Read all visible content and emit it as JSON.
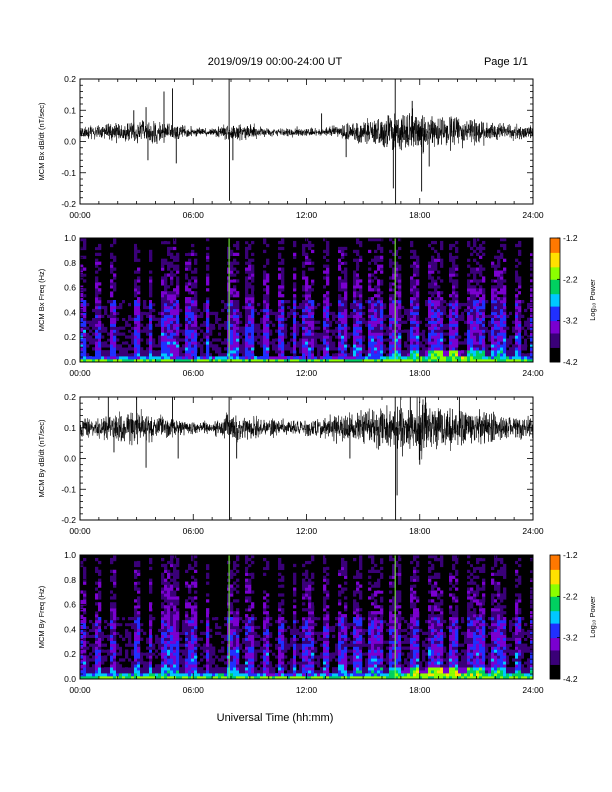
{
  "header": {
    "title": "2019/09/19  00:00-24:00 UT",
    "page": "Page 1/1"
  },
  "footer": {
    "xlabel": "Universal Time (hh:mm)"
  },
  "colors": {
    "trace": "#000000",
    "spectrogram_background": "#000000",
    "colormap": [
      "#000000",
      "#3a0078",
      "#7a00d0",
      "#2030ff",
      "#00c8ff",
      "#00d060",
      "#8cff00",
      "#ffe000",
      "#ff7800",
      "#ff0000"
    ]
  },
  "chart_data": [
    {
      "type": "line",
      "ylabel": "MCM Bx dB/dt (nT/sec)",
      "xlim": [
        0,
        24
      ],
      "ylim": [
        -0.2,
        0.2
      ],
      "xtick_labels": [
        "00:00",
        "06:00",
        "12:00",
        "18:00",
        "24:00"
      ],
      "ytick_labels": [
        "-0.2",
        "-0.1",
        "0.0",
        "0.1",
        "0.2"
      ],
      "grid": false,
      "series": [
        {
          "baseline": 0.03,
          "noise_envelope": {
            "x": [
              0,
              1,
              2,
              3,
              4,
              5,
              6,
              7,
              8,
              9,
              10,
              11,
              12,
              13,
              14,
              15,
              16,
              17,
              18,
              19,
              20,
              21,
              22,
              23,
              24
            ],
            "y": [
              0.015,
              0.02,
              0.025,
              0.03,
              0.035,
              0.02,
              0.012,
              0.012,
              0.025,
              0.02,
              0.012,
              0.012,
              0.012,
              0.012,
              0.022,
              0.03,
              0.045,
              0.055,
              0.05,
              0.045,
              0.04,
              0.035,
              0.025,
              0.022,
              0.02
            ]
          },
          "spikes": [
            {
              "x": 2.85,
              "y": 0.1
            },
            {
              "x": 3.5,
              "y": 0.11
            },
            {
              "x": 3.6,
              "y": -0.06
            },
            {
              "x": 4.45,
              "y": 0.16
            },
            {
              "x": 4.9,
              "y": 0.17
            },
            {
              "x": 5.1,
              "y": -0.07
            },
            {
              "x": 7.9,
              "y": 0.21
            },
            {
              "x": 7.92,
              "y": -0.19
            },
            {
              "x": 8.1,
              "y": -0.06
            },
            {
              "x": 16.7,
              "y": 0.21
            },
            {
              "x": 16.72,
              "y": -0.2
            },
            {
              "x": 16.6,
              "y": -0.15
            },
            {
              "x": 18.1,
              "y": -0.16
            },
            {
              "x": 17.6,
              "y": 0.13
            },
            {
              "x": 18.5,
              "y": -0.08
            },
            {
              "x": 14.1,
              "y": -0.05
            },
            {
              "x": 12.8,
              "y": 0.09
            }
          ]
        }
      ]
    },
    {
      "type": "heatmap",
      "ylabel": "MCM Bx Freq (Hz)",
      "xlim": [
        0,
        24
      ],
      "ylim": [
        0,
        1.0
      ],
      "xtick_labels": [
        "00:00",
        "06:00",
        "12:00",
        "18:00",
        "24:00"
      ],
      "ytick_labels": [
        "0.0",
        "0.2",
        "0.4",
        "0.6",
        "0.8",
        "1.0"
      ],
      "colorbar": {
        "label": "Log₁₀ Power",
        "range": [
          -4.2,
          -1.2
        ],
        "tick_labels": [
          "-1.2",
          "-2.2",
          "-3.2",
          "-4.2"
        ]
      },
      "dark_bands": [
        0.5,
        1.4,
        2.1,
        2.6,
        3.4,
        4.1,
        5.4,
        6.4,
        7.1,
        7.6,
        8.6,
        9.4,
        10.2,
        11.1,
        11.6,
        12.6,
        13.4,
        14.3,
        15.1,
        16.2,
        17.3,
        18.2,
        19.4,
        20.3,
        21.6,
        22.8,
        23.6
      ],
      "bright_lines": [
        7.9,
        16.7
      ],
      "low_freq_enhancement": {
        "x": [
          0,
          2,
          4,
          6,
          8,
          10,
          12,
          14,
          16,
          18,
          20,
          22,
          24
        ],
        "level": [
          0.35,
          0.4,
          0.5,
          0.3,
          0.45,
          0.3,
          0.3,
          0.35,
          0.45,
          0.7,
          0.8,
          0.55,
          0.4
        ]
      }
    },
    {
      "type": "line",
      "ylabel": "MCM By dB/dt (nT/sec)",
      "xlim": [
        0,
        24
      ],
      "ylim": [
        -0.2,
        0.2
      ],
      "xtick_labels": [
        "00:00",
        "06:00",
        "12:00",
        "18:00",
        "24:00"
      ],
      "ytick_labels": [
        "-0.2",
        "-0.1",
        "0.0",
        "0.1",
        "0.2"
      ],
      "grid": false,
      "series": [
        {
          "baseline": 0.1,
          "noise_envelope": {
            "x": [
              0,
              1,
              2,
              3,
              4,
              5,
              6,
              7,
              8,
              9,
              10,
              11,
              12,
              13,
              14,
              15,
              16,
              17,
              18,
              19,
              20,
              21,
              22,
              23,
              24
            ],
            "y": [
              0.025,
              0.03,
              0.04,
              0.045,
              0.035,
              0.025,
              0.015,
              0.015,
              0.04,
              0.035,
              0.025,
              0.02,
              0.025,
              0.03,
              0.04,
              0.05,
              0.06,
              0.07,
              0.07,
              0.065,
              0.055,
              0.05,
              0.04,
              0.035,
              0.03
            ]
          },
          "spikes": [
            {
              "x": 1.5,
              "y": 0.2
            },
            {
              "x": 1.8,
              "y": 0.02
            },
            {
              "x": 3.0,
              "y": 0.2
            },
            {
              "x": 3.5,
              "y": -0.03
            },
            {
              "x": 4.9,
              "y": 0.2
            },
            {
              "x": 5.2,
              "y": 0.0
            },
            {
              "x": 7.9,
              "y": 0.21
            },
            {
              "x": 7.92,
              "y": -0.2
            },
            {
              "x": 8.3,
              "y": 0.0
            },
            {
              "x": 14.3,
              "y": 0.0
            },
            {
              "x": 16.7,
              "y": 0.21
            },
            {
              "x": 16.72,
              "y": -0.2
            },
            {
              "x": 16.8,
              "y": -0.12
            },
            {
              "x": 17.5,
              "y": 0.21
            },
            {
              "x": 18.3,
              "y": 0.21
            },
            {
              "x": 18.0,
              "y": -0.02
            },
            {
              "x": 20.1,
              "y": 0.2
            }
          ]
        }
      ]
    },
    {
      "type": "heatmap",
      "ylabel": "MCM By Freq (Hz)",
      "xlim": [
        0,
        24
      ],
      "ylim": [
        0,
        1.0
      ],
      "xtick_labels": [
        "00:00",
        "06:00",
        "12:00",
        "18:00",
        "24:00"
      ],
      "ytick_labels": [
        "0.0",
        "0.2",
        "0.4",
        "0.6",
        "0.8",
        "1.0"
      ],
      "colorbar": {
        "label": "Log₁₀ Power",
        "range": [
          -4.2,
          -1.2
        ],
        "tick_labels": [
          "-1.2",
          "-2.2",
          "-3.2",
          "-4.2"
        ]
      },
      "dark_bands": [
        0.5,
        1.4,
        2.1,
        2.6,
        3.4,
        4.1,
        5.4,
        6.4,
        7.1,
        7.6,
        8.6,
        9.4,
        10.2,
        11.1,
        11.6,
        12.6,
        13.4,
        14.3,
        15.1,
        16.2,
        17.3,
        18.2,
        19.4,
        20.3,
        21.6,
        22.8,
        23.6
      ],
      "bright_lines": [
        7.9,
        16.7
      ],
      "low_freq_enhancement": {
        "x": [
          0,
          2,
          4,
          6,
          8,
          10,
          12,
          14,
          16,
          18,
          20,
          22,
          24
        ],
        "level": [
          0.45,
          0.5,
          0.6,
          0.4,
          0.55,
          0.4,
          0.4,
          0.45,
          0.55,
          0.8,
          0.9,
          0.65,
          0.5
        ]
      }
    }
  ]
}
